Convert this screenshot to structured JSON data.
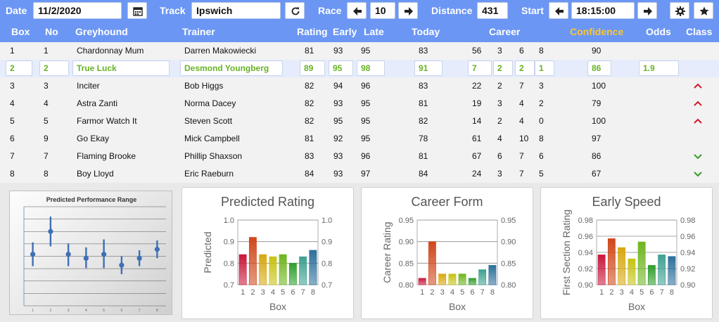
{
  "toolbar": {
    "date_label": "Date",
    "date_value": "11/2/2020",
    "track_label": "Track",
    "track_value": "Ipswich",
    "race_label": "Race",
    "race_value": "10",
    "distance_label": "Distance",
    "distance_value": "431",
    "start_label": "Start",
    "start_value": "18:15:00",
    "icons": [
      "calendar-icon",
      "refresh-icon",
      "arrow-left-icon",
      "arrow-right-icon",
      "gear-icon",
      "star-icon"
    ]
  },
  "table": {
    "headers": {
      "box": "Box",
      "no": "No",
      "greyhound": "Greyhound",
      "trainer": "Trainer",
      "rating": "Rating",
      "early": "Early",
      "late": "Late",
      "today": "Today",
      "career": "Career",
      "confidence": "Confidence",
      "odds": "Odds",
      "class": "Class"
    },
    "confidence_color": "#ffc62a",
    "rows": [
      {
        "box": "1",
        "no": "1",
        "greyhound": "Chardonnay Mum",
        "trainer": "Darren Makowiecki",
        "rating": "81",
        "early": "93",
        "late": "95",
        "today": "83",
        "c1": "56",
        "c2": "3",
        "c3": "6",
        "c4": "8",
        "confidence": "90",
        "odds": "",
        "class": ""
      },
      {
        "box": "2",
        "no": "2",
        "greyhound": "True Luck",
        "trainer": "Desmond Youngberg",
        "rating": "89",
        "early": "95",
        "late": "98",
        "today": "91",
        "c1": "7",
        "c2": "2",
        "c3": "2",
        "c4": "1",
        "confidence": "86",
        "odds": "1.9",
        "class": ""
      },
      {
        "box": "3",
        "no": "3",
        "greyhound": "Inciter",
        "trainer": "Bob Higgs",
        "rating": "82",
        "early": "94",
        "late": "96",
        "today": "83",
        "c1": "22",
        "c2": "2",
        "c3": "7",
        "c4": "3",
        "confidence": "100",
        "odds": "",
        "class": "up"
      },
      {
        "box": "4",
        "no": "4",
        "greyhound": "Astra Zanti",
        "trainer": "Norma Dacey",
        "rating": "82",
        "early": "93",
        "late": "95",
        "today": "81",
        "c1": "19",
        "c2": "3",
        "c3": "4",
        "c4": "2",
        "confidence": "79",
        "odds": "",
        "class": "up"
      },
      {
        "box": "5",
        "no": "5",
        "greyhound": "Farmor Watch It",
        "trainer": "Steven Scott",
        "rating": "82",
        "early": "95",
        "late": "95",
        "today": "82",
        "c1": "14",
        "c2": "2",
        "c3": "4",
        "c4": "0",
        "confidence": "100",
        "odds": "",
        "class": "up"
      },
      {
        "box": "6",
        "no": "9",
        "greyhound": "Go Ekay",
        "trainer": "Mick Campbell",
        "rating": "81",
        "early": "92",
        "late": "95",
        "today": "78",
        "c1": "61",
        "c2": "4",
        "c3": "10",
        "c4": "8",
        "confidence": "97",
        "odds": "",
        "class": ""
      },
      {
        "box": "7",
        "no": "7",
        "greyhound": "Flaming Brooke",
        "trainer": "Phillip Shaxson",
        "rating": "83",
        "early": "93",
        "late": "96",
        "today": "81",
        "c1": "67",
        "c2": "6",
        "c3": "7",
        "c4": "6",
        "confidence": "86",
        "odds": "",
        "class": "down"
      },
      {
        "box": "8",
        "no": "8",
        "greyhound": "Boy Lloyd",
        "trainer": "Eric Raeburn",
        "rating": "84",
        "early": "93",
        "late": "97",
        "today": "84",
        "c1": "24",
        "c2": "3",
        "c3": "7",
        "c4": "5",
        "confidence": "67",
        "odds": "",
        "class": "down"
      }
    ],
    "selected_row": 1,
    "class_up_color": "#d0182a",
    "class_down_color": "#3a9a2a",
    "selected_text_color": "#67b226"
  },
  "chart_data": [
    {
      "type": "scatter",
      "title": "Predicted Performance Range",
      "categories": [
        "1",
        "2",
        "3",
        "4",
        "5",
        "6",
        "7",
        "8"
      ],
      "values": [
        0.52,
        0.75,
        0.52,
        0.48,
        0.52,
        0.41,
        0.48,
        0.57
      ],
      "low": [
        0.4,
        0.6,
        0.4,
        0.38,
        0.38,
        0.32,
        0.4,
        0.48
      ],
      "high": [
        0.64,
        0.9,
        0.63,
        0.59,
        0.67,
        0.5,
        0.56,
        0.66
      ],
      "ylim": [
        0,
        1
      ],
      "grid": true
    },
    {
      "type": "bar",
      "title": "Predicted Rating",
      "xlabel": "Box",
      "ylabel": "Predicted",
      "categories": [
        "1",
        "2",
        "3",
        "4",
        "5",
        "6",
        "7",
        "8"
      ],
      "values": [
        0.84,
        0.92,
        0.84,
        0.83,
        0.84,
        0.8,
        0.83,
        0.86
      ],
      "ylim": [
        0.7,
        1.0
      ],
      "yticks": [
        "0.7",
        "0.8",
        "0.9",
        "1.0"
      ],
      "grid": true
    },
    {
      "type": "bar",
      "title": "Career Form",
      "xlabel": "Box",
      "ylabel": "Career Rating",
      "categories": [
        "1",
        "2",
        "3",
        "4",
        "5",
        "6",
        "7",
        "8"
      ],
      "values": [
        0.815,
        0.9,
        0.825,
        0.825,
        0.825,
        0.815,
        0.835,
        0.845
      ],
      "ylim": [
        0.8,
        0.95
      ],
      "yticks": [
        "0.80",
        "0.85",
        "0.90",
        "0.95"
      ],
      "grid": true
    },
    {
      "type": "bar",
      "title": "Early Speed",
      "xlabel": "Box",
      "ylabel": "First Section Rating",
      "categories": [
        "1",
        "2",
        "3",
        "4",
        "5",
        "6",
        "7",
        "8"
      ],
      "values": [
        0.937,
        0.957,
        0.946,
        0.932,
        0.953,
        0.924,
        0.937,
        0.935
      ],
      "ylim": [
        0.9,
        0.98
      ],
      "yticks": [
        "0.90",
        "0.92",
        "0.94",
        "0.96",
        "0.98"
      ],
      "grid": true
    }
  ],
  "bar_colors": [
    "#c8173a",
    "#d0471a",
    "#d7a80f",
    "#c6c212",
    "#6fb51e",
    "#2f9e2c",
    "#3da191",
    "#2c6f9a"
  ]
}
